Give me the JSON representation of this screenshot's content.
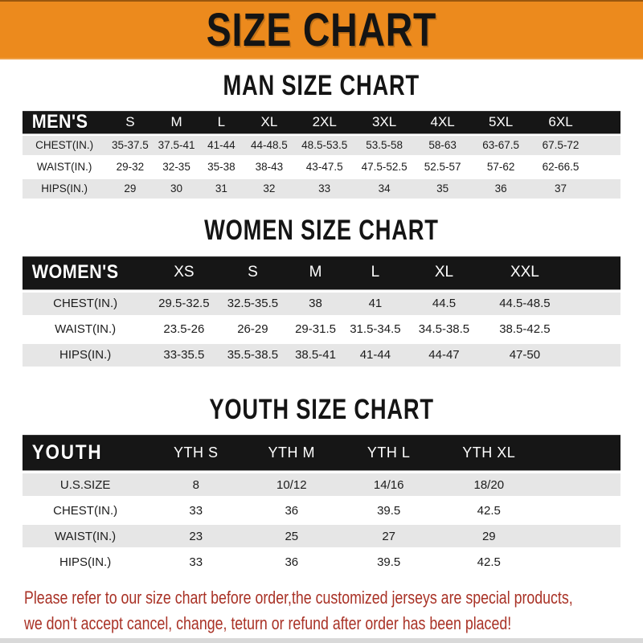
{
  "banner": {
    "title": "SIZE CHART",
    "bg_color": "#EC8A1D"
  },
  "sections": [
    {
      "id": "men",
      "heading": "MAN SIZE CHART",
      "table": {
        "header": [
          "MEN'S",
          "S",
          "M",
          "L",
          "XL",
          "2XL",
          "3XL",
          "4XL",
          "5XL",
          "6XL"
        ],
        "rows": [
          [
            "CHEST(IN.)",
            "35-37.5",
            "37.5-41",
            "41-44",
            "44-48.5",
            "48.5-53.5",
            "53.5-58",
            "58-63",
            "63-67.5",
            "67.5-72"
          ],
          [
            "WAIST(IN.)",
            "29-32",
            "32-35",
            "35-38",
            "38-43",
            "43-47.5",
            "47.5-52.5",
            "52.5-57",
            "57-62",
            "62-66.5"
          ],
          [
            "HIPS(IN.)",
            "29",
            "30",
            "31",
            "32",
            "33",
            "34",
            "35",
            "36",
            "37"
          ]
        ]
      }
    },
    {
      "id": "women",
      "heading": "WOMEN SIZE CHART",
      "table": {
        "header": [
          "WOMEN'S",
          "XS",
          "S",
          "M",
          "L",
          "XL",
          "XXL"
        ],
        "rows": [
          [
            "CHEST(IN.)",
            "29.5-32.5",
            "32.5-35.5",
            "38",
            "41",
            "44.5",
            "44.5-48.5"
          ],
          [
            "WAIST(IN.)",
            "23.5-26",
            "26-29",
            "29-31.5",
            "31.5-34.5",
            "34.5-38.5",
            "38.5-42.5"
          ],
          [
            "HIPS(IN.)",
            "33-35.5",
            "35.5-38.5",
            "38.5-41",
            "41-44",
            "44-47",
            "47-50"
          ]
        ]
      }
    },
    {
      "id": "youth",
      "heading": "YOUTH SIZE CHART",
      "table": {
        "header": [
          "YOUTH",
          "YTH S",
          "YTH M",
          "YTH L",
          "YTH XL"
        ],
        "rows": [
          [
            "U.S.SIZE",
            "8",
            "10/12",
            "14/16",
            "18/20"
          ],
          [
            "CHEST(IN.)",
            "33",
            "36",
            "39.5",
            "42.5"
          ],
          [
            "WAIST(IN.)",
            "23",
            "25",
            "27",
            "29"
          ],
          [
            "HIPS(IN.)",
            "33",
            "36",
            "39.5",
            "42.5"
          ]
        ]
      }
    }
  ],
  "footer": {
    "lines": [
      "Please refer to our size chart before order,the customized jerseys are special products,",
      "we don't accept cancel, change, teturn or refund after order has been placed!"
    ],
    "text_color": "#A93226"
  }
}
